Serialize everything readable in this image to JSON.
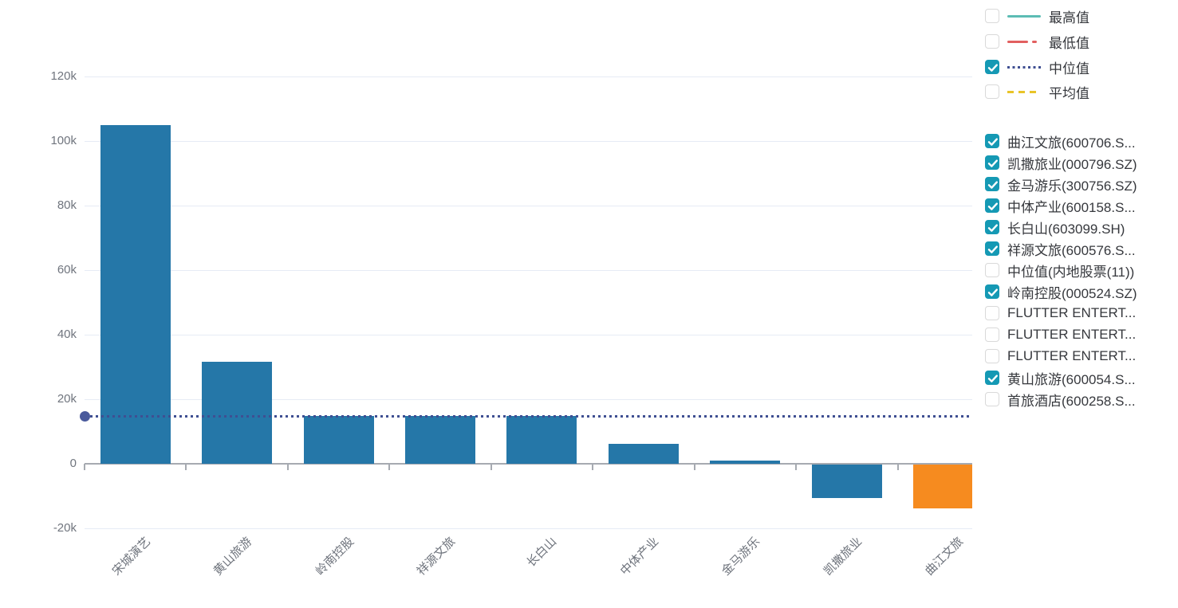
{
  "chart_data": {
    "type": "bar",
    "title": "",
    "xlabel": "",
    "ylabel": "",
    "categories": [
      "宋城演艺",
      "黄山旅游",
      "岭南控股",
      "祥源文旅",
      "长白山",
      "中体产业",
      "金马游乐",
      "凯撒旅业",
      "曲江文旅"
    ],
    "values": [
      105000,
      31500,
      14800,
      14800,
      14700,
      6200,
      900,
      -10400,
      -13500
    ],
    "bar_colors": [
      "#2577a8",
      "#2577a8",
      "#2577a8",
      "#2577a8",
      "#2577a8",
      "#2577a8",
      "#2577a8",
      "#2577a8",
      "#f68b1f"
    ],
    "median_line": {
      "label": "中位值",
      "value": 14600,
      "color": "#3f4f92",
      "style": "dotted",
      "start_marker": "circle"
    },
    "ylim": [
      -20000,
      120000
    ],
    "ytick_interval": 20000,
    "ytick_labels": [
      "120k",
      "100k",
      "80k",
      "60k",
      "40k",
      "20k",
      "0",
      "-20k"
    ],
    "ytick_values": [
      120000,
      100000,
      80000,
      60000,
      40000,
      20000,
      0,
      -20000
    ],
    "grid": true,
    "legend_position": "right"
  },
  "stat_legend": [
    {
      "label": "最高值",
      "checked": false,
      "style": "solid",
      "color": "#5cbcb4"
    },
    {
      "label": "最低值",
      "checked": false,
      "style": "dash-dot",
      "color": "#e25f5f"
    },
    {
      "label": "中位值",
      "checked": true,
      "style": "dotted",
      "color": "#3f4f92"
    },
    {
      "label": "平均值",
      "checked": false,
      "style": "dashed",
      "color": "#e9c428"
    }
  ],
  "series_legend": [
    {
      "label": "曲江文旅(600706.S...",
      "checked": true
    },
    {
      "label": "凯撒旅业(000796.SZ)",
      "checked": true
    },
    {
      "label": "金马游乐(300756.SZ)",
      "checked": true
    },
    {
      "label": "中体产业(600158.S...",
      "checked": true
    },
    {
      "label": "长白山(603099.SH)",
      "checked": true
    },
    {
      "label": "祥源文旅(600576.S...",
      "checked": true
    },
    {
      "label": "中位值(内地股票(11))",
      "checked": false
    },
    {
      "label": "岭南控股(000524.SZ)",
      "checked": true
    },
    {
      "label": "FLUTTER ENTERT...",
      "checked": false
    },
    {
      "label": "FLUTTER ENTERT...",
      "checked": false
    },
    {
      "label": "FLUTTER ENTERT...",
      "checked": false
    },
    {
      "label": "黄山旅游(600054.S...",
      "checked": true
    },
    {
      "label": "首旅酒店(600258.S...",
      "checked": false
    }
  ],
  "colors": {
    "bar_blue": "#2577a8",
    "bar_orange": "#f68b1f",
    "checkbox_checked": "#1599b4",
    "median_navy": "#3f4f92",
    "median_dot": "#4a5a9c",
    "grid": "#e6ebf5",
    "axis": "#a6aab1",
    "axis_text": "#70757e",
    "legend_text": "#36383d"
  }
}
